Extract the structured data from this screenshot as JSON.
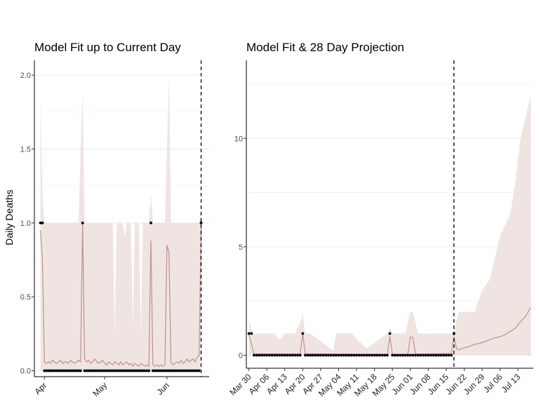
{
  "colors": {
    "ribbon": "#efe4e2",
    "fit_line": "#c39690",
    "points": "#000000",
    "axis": "#000000",
    "grid": "#ebebeb",
    "vline": "#000000"
  },
  "y_axis_label": "Daily Deaths",
  "chart_data": [
    {
      "type": "line",
      "title": "Model Fit up to Current Day",
      "xlabel": "",
      "ylabel": "Daily Deaths",
      "x_start": "Mar 30",
      "x_end": "Jun 18",
      "ylim": [
        -0.04,
        2.1
      ],
      "yticks": [
        0.0,
        0.5,
        1.0,
        1.5,
        2.0
      ],
      "ytick_labels": [
        "0.0",
        "0.5",
        "1.0",
        "1.5",
        "2.0"
      ],
      "xtick_labels": [
        "Apr",
        "May",
        "Jun"
      ],
      "xtick_days": [
        2,
        32,
        63
      ],
      "current_day_line": 80,
      "grid": true,
      "series": [
        {
          "type": "points",
          "x_days": [
            0,
            1,
            2,
            3,
            4,
            5,
            6,
            7,
            8,
            9,
            10,
            11,
            12,
            13,
            14,
            15,
            16,
            17,
            18,
            19,
            20,
            21,
            22,
            23,
            24,
            25,
            26,
            27,
            28,
            29,
            30,
            31,
            32,
            33,
            34,
            35,
            36,
            37,
            38,
            39,
            40,
            41,
            42,
            43,
            44,
            45,
            46,
            47,
            48,
            49,
            50,
            51,
            52,
            53,
            54,
            55,
            56,
            57,
            58,
            59,
            60,
            61,
            62,
            63,
            64,
            65,
            66,
            67,
            68,
            69,
            70,
            71,
            72,
            73,
            74,
            75,
            76,
            77,
            78,
            79,
            80
          ],
          "values": [
            1,
            1,
            0,
            0,
            0,
            0,
            0,
            0,
            0,
            0,
            0,
            0,
            0,
            0,
            0,
            0,
            0,
            0,
            0,
            0,
            0,
            1,
            0,
            0,
            0,
            0,
            0,
            0,
            0,
            0,
            0,
            0,
            0,
            0,
            0,
            0,
            0,
            0,
            0,
            0,
            0,
            0,
            0,
            0,
            0,
            0,
            0,
            0,
            0,
            0,
            0,
            0,
            0,
            0,
            0,
            1,
            0,
            0,
            0,
            0,
            0,
            0,
            0,
            0,
            0,
            0,
            0,
            0,
            0,
            0,
            0,
            0,
            0,
            0,
            0,
            0,
            0,
            0,
            0,
            0,
            1
          ]
        },
        {
          "type": "line",
          "x_days": [
            0,
            1,
            2,
            3,
            4,
            5,
            6,
            7,
            8,
            9,
            10,
            11,
            12,
            13,
            14,
            15,
            16,
            17,
            18,
            19,
            20,
            21,
            22,
            23,
            24,
            25,
            26,
            27,
            28,
            29,
            30,
            31,
            32,
            33,
            34,
            35,
            36,
            37,
            38,
            39,
            40,
            41,
            42,
            43,
            44,
            45,
            46,
            47,
            48,
            49,
            50,
            51,
            52,
            53,
            54,
            55,
            56,
            57,
            58,
            59,
            60,
            61,
            62,
            63,
            64,
            65,
            66,
            67,
            68,
            69,
            70,
            71,
            72,
            73,
            74,
            75,
            76,
            77,
            78,
            79,
            80
          ],
          "values": [
            0.95,
            0.75,
            0.06,
            0.05,
            0.06,
            0.05,
            0.07,
            0.06,
            0.05,
            0.06,
            0.07,
            0.05,
            0.06,
            0.06,
            0.05,
            0.07,
            0.06,
            0.05,
            0.06,
            0.07,
            0.06,
            1.0,
            0.08,
            0.06,
            0.07,
            0.05,
            0.06,
            0.08,
            0.06,
            0.05,
            0.06,
            0.07,
            0.05,
            0.04,
            0.06,
            0.05,
            0.04,
            0.06,
            0.05,
            0.04,
            0.06,
            0.04,
            0.05,
            0.06,
            0.04,
            0.05,
            0.03,
            0.05,
            0.04,
            0.03,
            0.05,
            0.04,
            0.03,
            0.04,
            0.03,
            0.88,
            0.04,
            0.03,
            0.04,
            0.03,
            0.04,
            0.03,
            0.04,
            0.85,
            0.8,
            0.06,
            0.04,
            0.05,
            0.06,
            0.05,
            0.07,
            0.05,
            0.06,
            0.08,
            0.06,
            0.07,
            0.08,
            0.06,
            0.09,
            0.1,
            0.99
          ]
        },
        {
          "type": "ribbon",
          "x_days": [
            0,
            1,
            2,
            3,
            4,
            5,
            6,
            7,
            8,
            9,
            10,
            11,
            12,
            13,
            14,
            15,
            16,
            17,
            18,
            19,
            20,
            21,
            22,
            23,
            24,
            25,
            26,
            27,
            28,
            29,
            30,
            31,
            32,
            33,
            34,
            35,
            36,
            37,
            38,
            39,
            40,
            41,
            42,
            43,
            44,
            45,
            46,
            47,
            48,
            49,
            50,
            51,
            52,
            53,
            54,
            55,
            56,
            57,
            58,
            59,
            60,
            61,
            62,
            63,
            64,
            65,
            66,
            67,
            68,
            69,
            70,
            71,
            72,
            73,
            74,
            75,
            76,
            77,
            78,
            79,
            80
          ],
          "upper": [
            1.85,
            1.2,
            1.0,
            1.0,
            1.0,
            1.0,
            1.0,
            1.0,
            1.0,
            1.0,
            1.0,
            1.0,
            1.0,
            1.0,
            1.0,
            1.0,
            1.0,
            1.0,
            1.0,
            1.0,
            1.5,
            1.88,
            1.0,
            1.0,
            1.0,
            1.0,
            1.0,
            1.0,
            1.0,
            1.0,
            1.0,
            1.0,
            1.0,
            1.0,
            1.0,
            1.0,
            1.0,
            0.25,
            1.0,
            1.0,
            1.0,
            1.0,
            0.9,
            1.0,
            1.0,
            1.0,
            0.3,
            1.0,
            1.0,
            1.0,
            0.25,
            1.0,
            1.0,
            1.0,
            1.0,
            1.2,
            1.0,
            1.0,
            1.0,
            1.0,
            1.0,
            1.0,
            1.0,
            1.5,
            2.0,
            1.0,
            1.0,
            1.0,
            1.0,
            1.0,
            1.0,
            1.0,
            1.0,
            1.0,
            1.0,
            1.0,
            1.0,
            1.0,
            1.0,
            1.0,
            1.1
          ]
        }
      ]
    },
    {
      "type": "line",
      "title": "Model Fit & 28 Day Projection",
      "xlabel": "",
      "ylabel": "",
      "x_start": "Mar 30",
      "x_end": "Jul 18",
      "ylim": [
        -0.6,
        13.6
      ],
      "yticks": [
        0,
        5,
        10
      ],
      "ytick_labels": [
        "0",
        "5",
        "10"
      ],
      "xtick_labels": [
        "Mar 30",
        "Apr 06",
        "Apr 13",
        "Apr 20",
        "Apr 27",
        "May 04",
        "May 11",
        "May 18",
        "May 25",
        "Jun 01",
        "Jun 08",
        "Jun 15",
        "Jun 22",
        "Jun 29",
        "Jul 06",
        "Jul 13"
      ],
      "xtick_days": [
        0,
        7,
        14,
        21,
        28,
        35,
        42,
        49,
        56,
        63,
        70,
        77,
        84,
        91,
        98,
        105
      ],
      "current_day_line": 80,
      "grid": true,
      "series": [
        {
          "type": "points",
          "x_days": [
            0,
            1,
            2,
            3,
            4,
            5,
            6,
            7,
            8,
            9,
            10,
            11,
            12,
            13,
            14,
            15,
            16,
            17,
            18,
            19,
            20,
            21,
            22,
            23,
            24,
            25,
            26,
            27,
            28,
            29,
            30,
            31,
            32,
            33,
            34,
            35,
            36,
            37,
            38,
            39,
            40,
            41,
            42,
            43,
            44,
            45,
            46,
            47,
            48,
            49,
            50,
            51,
            52,
            53,
            54,
            55,
            56,
            57,
            58,
            59,
            60,
            61,
            62,
            63,
            64,
            65,
            66,
            67,
            68,
            69,
            70,
            71,
            72,
            73,
            74,
            75,
            76,
            77,
            78,
            79,
            80
          ],
          "values": [
            1,
            1,
            0,
            0,
            0,
            0,
            0,
            0,
            0,
            0,
            0,
            0,
            0,
            0,
            0,
            0,
            0,
            0,
            0,
            0,
            0,
            1,
            0,
            0,
            0,
            0,
            0,
            0,
            0,
            0,
            0,
            0,
            0,
            0,
            0,
            0,
            0,
            0,
            0,
            0,
            0,
            0,
            0,
            0,
            0,
            0,
            0,
            0,
            0,
            0,
            0,
            0,
            0,
            0,
            0,
            1,
            0,
            0,
            0,
            0,
            0,
            0,
            0,
            0,
            0,
            0,
            0,
            0,
            0,
            0,
            0,
            0,
            0,
            0,
            0,
            0,
            0,
            0,
            0,
            0,
            1
          ]
        },
        {
          "type": "line",
          "x_days": [
            0,
            2,
            3,
            20,
            21,
            22,
            54,
            55,
            56,
            62,
            63,
            64,
            65,
            66,
            79,
            80,
            81,
            82,
            84,
            86,
            88,
            90,
            92,
            94,
            96,
            98,
            100,
            102,
            104,
            106,
            108,
            110
          ],
          "values": [
            0.95,
            0.06,
            0.06,
            0.06,
            1.0,
            0.06,
            0.04,
            0.88,
            0.04,
            0.04,
            0.85,
            0.82,
            0.06,
            0.05,
            0.08,
            0.85,
            0.3,
            0.25,
            0.35,
            0.4,
            0.5,
            0.55,
            0.62,
            0.72,
            0.8,
            0.85,
            0.95,
            1.1,
            1.25,
            1.55,
            1.8,
            2.2
          ]
        },
        {
          "type": "ribbon",
          "x_days": [
            0,
            1,
            2,
            10,
            12,
            14,
            18,
            20,
            21,
            22,
            24,
            33,
            34,
            40,
            46,
            54,
            55,
            56,
            61,
            62,
            63,
            64,
            65,
            66,
            78,
            80,
            81,
            82,
            84,
            88,
            91,
            94,
            96,
            98,
            100,
            102,
            104,
            106,
            108,
            110
          ],
          "upper": [
            1.6,
            1.2,
            1.0,
            1.0,
            0.7,
            1.0,
            1.0,
            1.5,
            1.9,
            1.0,
            1.0,
            0.2,
            1.0,
            1.0,
            0.3,
            1.0,
            1.3,
            1.0,
            1.0,
            1.5,
            2.0,
            2.0,
            1.5,
            1.0,
            1.0,
            1.0,
            1.6,
            2.0,
            2.0,
            2.0,
            3.0,
            3.5,
            4.5,
            5.5,
            6.0,
            6.5,
            8.0,
            10.0,
            11.0,
            12.0
          ]
        }
      ]
    }
  ]
}
